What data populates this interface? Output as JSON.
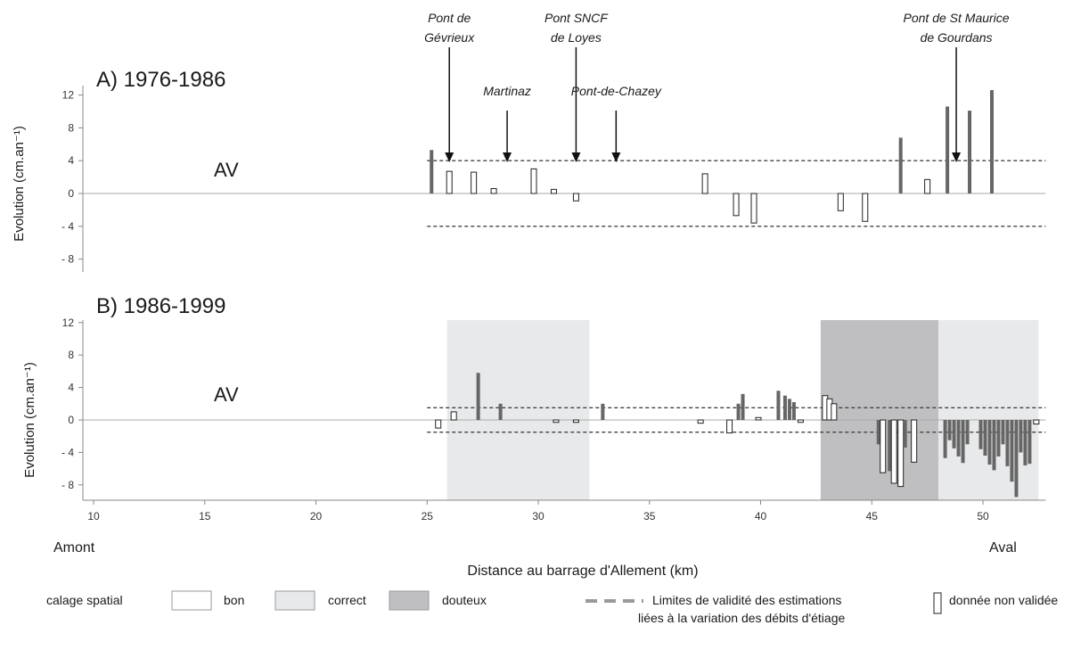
{
  "chart_data": {
    "type": "bar",
    "xlabel": "Distance au barrage d'Allement (km)",
    "x_ticks": [
      10,
      15,
      20,
      25,
      30,
      35,
      40,
      45,
      50
    ],
    "x_range": [
      10,
      52.5
    ],
    "xlabel_left": "Amont",
    "xlabel_right": "Aval",
    "ylabel": "Evolution (cm.an⁻¹)",
    "legend_position": "bottom",
    "legend": {
      "group_label": "calage spatial",
      "bon": "bon",
      "correct": "correct",
      "douteux": "douteux",
      "limits_line1": "Limites de validité des estimations",
      "limits_line2": "liées à la variation des débits d'étiage",
      "nonvalid": "donnée non validée"
    },
    "colors": {
      "bar": "#666666",
      "bon": "#ffffff",
      "correct": "#e8e9eb",
      "douteux": "#bfbfc1",
      "validity_line": "#444444"
    },
    "panels": [
      {
        "title": "A) 1976-1986",
        "label": "AV",
        "ylim": [
          -10,
          14
        ],
        "y_ticks": [
          12,
          8,
          4,
          0,
          -4,
          -8
        ],
        "y_tick_labels": [
          "12",
          "8",
          "4",
          "0",
          "- 4",
          "- 8"
        ],
        "validity_limits": [
          4,
          -4
        ],
        "validity_x_range": [
          25,
          52.5
        ],
        "bridges": [
          {
            "lines": [
              "Pont de",
              "Gévrieux"
            ],
            "x": 26
          },
          {
            "lines": [
              "Martinaz"
            ],
            "x": 28.6
          },
          {
            "lines": [
              "Pont SNCF",
              "de Loyes"
            ],
            "x": 31.7
          },
          {
            "lines": [
              "Pont-de-Chazey"
            ],
            "x": 33.5
          },
          {
            "lines": [
              "Pont de St Maurice",
              "de Gourdans"
            ],
            "x": 48.8
          }
        ],
        "bars": [
          {
            "x": 25.2,
            "value": 5.3,
            "validated": true
          },
          {
            "x": 26.0,
            "value": 2.7,
            "validated": false
          },
          {
            "x": 27.1,
            "value": 2.6,
            "validated": false
          },
          {
            "x": 28.0,
            "value": 0.6,
            "validated": false
          },
          {
            "x": 29.8,
            "value": 3.0,
            "validated": false
          },
          {
            "x": 30.7,
            "value": 0.5,
            "validated": false
          },
          {
            "x": 31.7,
            "value": -0.9,
            "validated": false
          },
          {
            "x": 37.5,
            "value": 2.4,
            "validated": false
          },
          {
            "x": 38.9,
            "value": -2.7,
            "validated": false
          },
          {
            "x": 39.7,
            "value": -3.6,
            "validated": false
          },
          {
            "x": 43.6,
            "value": -2.1,
            "validated": false
          },
          {
            "x": 44.7,
            "value": -3.4,
            "validated": false
          },
          {
            "x": 46.3,
            "value": 6.8,
            "validated": true
          },
          {
            "x": 47.5,
            "value": 1.7,
            "validated": false
          },
          {
            "x": 48.4,
            "value": 10.6,
            "validated": true
          },
          {
            "x": 49.4,
            "value": 10.1,
            "validated": true
          },
          {
            "x": 50.4,
            "value": 12.6,
            "validated": true
          }
        ]
      },
      {
        "title": "B) 1986-1999",
        "label": "AV",
        "ylim": [
          -10,
          14
        ],
        "y_ticks": [
          12,
          8,
          4,
          0,
          -4,
          -8
        ],
        "y_tick_labels": [
          "12",
          "8",
          "4",
          "0",
          "- 4",
          "- 8"
        ],
        "validity_limits": [
          1.5,
          -1.5
        ],
        "validity_x_range": [
          25,
          52.5
        ],
        "zones": [
          {
            "from": 25.9,
            "to": 32.3,
            "quality": "correct"
          },
          {
            "from": 42.7,
            "to": 48.0,
            "quality": "douteux"
          },
          {
            "from": 48.0,
            "to": 52.5,
            "quality": "correct"
          }
        ],
        "bars": [
          {
            "x": 25.5,
            "value": -1.0,
            "validated": false
          },
          {
            "x": 26.2,
            "value": 1.0,
            "validated": false
          },
          {
            "x": 27.3,
            "value": 5.8,
            "validated": true
          },
          {
            "x": 28.3,
            "value": 2.0,
            "validated": true
          },
          {
            "x": 30.8,
            "value": -0.3,
            "validated": false
          },
          {
            "x": 31.7,
            "value": -0.3,
            "validated": false
          },
          {
            "x": 32.9,
            "value": 2.0,
            "validated": true
          },
          {
            "x": 37.3,
            "value": -0.4,
            "validated": false
          },
          {
            "x": 38.6,
            "value": -1.6,
            "validated": false
          },
          {
            "x": 39.0,
            "value": 2.0,
            "validated": true
          },
          {
            "x": 39.2,
            "value": 3.2,
            "validated": true
          },
          {
            "x": 39.9,
            "value": 0.3,
            "validated": false
          },
          {
            "x": 40.8,
            "value": 3.6,
            "validated": true
          },
          {
            "x": 41.1,
            "value": 3.0,
            "validated": true
          },
          {
            "x": 41.3,
            "value": 2.6,
            "validated": true
          },
          {
            "x": 41.5,
            "value": 2.2,
            "validated": true
          },
          {
            "x": 41.8,
            "value": -0.3,
            "validated": false
          },
          {
            "x": 42.9,
            "value": 3.0,
            "validated": false
          },
          {
            "x": 43.1,
            "value": 2.6,
            "validated": false
          },
          {
            "x": 43.3,
            "value": 2.0,
            "validated": false
          },
          {
            "x": 45.3,
            "value": -3.0,
            "validated": true
          },
          {
            "x": 45.5,
            "value": -6.5,
            "validated": false
          },
          {
            "x": 45.8,
            "value": -6.3,
            "validated": true
          },
          {
            "x": 46.0,
            "value": -7.8,
            "validated": false
          },
          {
            "x": 46.3,
            "value": -8.2,
            "validated": false
          },
          {
            "x": 46.5,
            "value": -3.4,
            "validated": true
          },
          {
            "x": 46.9,
            "value": -5.2,
            "validated": false
          },
          {
            "x": 48.3,
            "value": -4.7,
            "validated": true
          },
          {
            "x": 48.5,
            "value": -2.5,
            "validated": true
          },
          {
            "x": 48.7,
            "value": -3.5,
            "validated": true
          },
          {
            "x": 48.9,
            "value": -4.5,
            "validated": true
          },
          {
            "x": 49.1,
            "value": -5.3,
            "validated": true
          },
          {
            "x": 49.3,
            "value": -3.0,
            "validated": true
          },
          {
            "x": 49.9,
            "value": -3.6,
            "validated": true
          },
          {
            "x": 50.1,
            "value": -4.4,
            "validated": true
          },
          {
            "x": 50.3,
            "value": -5.5,
            "validated": true
          },
          {
            "x": 50.5,
            "value": -6.2,
            "validated": true
          },
          {
            "x": 50.7,
            "value": -4.5,
            "validated": true
          },
          {
            "x": 50.9,
            "value": -3.0,
            "validated": true
          },
          {
            "x": 51.1,
            "value": -5.7,
            "validated": true
          },
          {
            "x": 51.3,
            "value": -7.6,
            "validated": true
          },
          {
            "x": 51.5,
            "value": -9.5,
            "validated": true
          },
          {
            "x": 51.7,
            "value": -4.0,
            "validated": true
          },
          {
            "x": 51.9,
            "value": -5.6,
            "validated": true
          },
          {
            "x": 52.1,
            "value": -5.4,
            "validated": true
          },
          {
            "x": 52.4,
            "value": -0.5,
            "validated": false
          }
        ]
      }
    ]
  }
}
